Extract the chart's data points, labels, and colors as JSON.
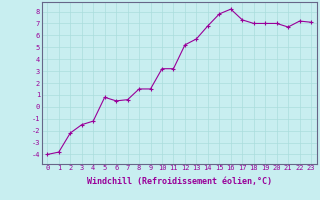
{
  "x": [
    0,
    1,
    2,
    3,
    4,
    5,
    6,
    7,
    8,
    9,
    10,
    11,
    12,
    13,
    14,
    15,
    16,
    17,
    18,
    19,
    20,
    21,
    22,
    23
  ],
  "y": [
    -4.0,
    -3.8,
    -2.2,
    -1.5,
    -1.2,
    0.8,
    0.5,
    0.6,
    1.5,
    1.5,
    3.2,
    3.2,
    5.2,
    5.7,
    6.8,
    7.8,
    8.2,
    7.3,
    7.0,
    7.0,
    7.0,
    6.7,
    7.2,
    7.1
  ],
  "line_color": "#990099",
  "marker": "+",
  "marker_size": 3,
  "background_color": "#c8eef0",
  "grid_color": "#aadddd",
  "xlabel": "Windchill (Refroidissement éolien,°C)",
  "ylabel": "",
  "xlim": [
    -0.5,
    23.5
  ],
  "ylim": [
    -4.8,
    8.8
  ],
  "yticks": [
    -4,
    -3,
    -2,
    -1,
    0,
    1,
    2,
    3,
    4,
    5,
    6,
    7,
    8
  ],
  "xticks": [
    0,
    1,
    2,
    3,
    4,
    5,
    6,
    7,
    8,
    9,
    10,
    11,
    12,
    13,
    14,
    15,
    16,
    17,
    18,
    19,
    20,
    21,
    22,
    23
  ],
  "tick_fontsize": 5,
  "xlabel_fontsize": 6,
  "line_width": 0.8
}
